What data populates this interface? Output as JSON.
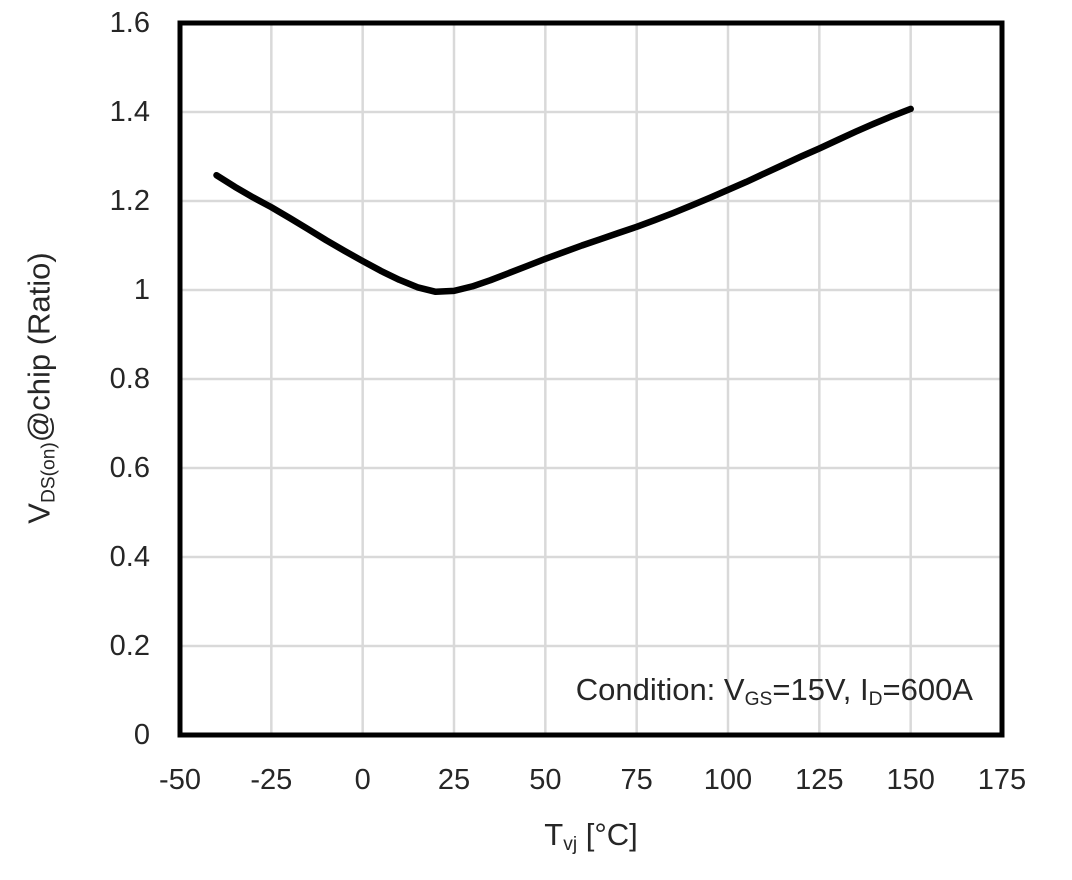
{
  "chart_data": {
    "type": "line",
    "title": "",
    "xlabel_text": "Tvj [°C]",
    "ylabel_text": "VDS(on)@chip (Ratio)",
    "xlabel_parts": [
      {
        "t": "T"
      },
      {
        "t": "vj",
        "sub": true
      },
      {
        "t": " [°C]"
      }
    ],
    "ylabel_parts": [
      {
        "t": "V"
      },
      {
        "t": "DS(on)",
        "sub": true
      },
      {
        "t": "@chip (Ratio)"
      }
    ],
    "annotation": {
      "text": "Condition: VGS=15V, ID=600A",
      "parts": [
        {
          "t": "Condition: V"
        },
        {
          "t": "GS",
          "sub": true
        },
        {
          "t": "=15V, I"
        },
        {
          "t": "D",
          "sub": true
        },
        {
          "t": "=600A"
        }
      ],
      "position": "bottom-right-inside"
    },
    "xlim": [
      -50,
      175
    ],
    "ylim": [
      0,
      1.6
    ],
    "x_ticks": {
      "values": [
        -50,
        -25,
        0,
        25,
        50,
        75,
        100,
        125,
        150,
        175
      ],
      "labels": [
        "-50",
        "-25",
        "0",
        "25",
        "50",
        "75",
        "100",
        "125",
        "150",
        "175"
      ]
    },
    "y_ticks": {
      "values": [
        0,
        0.2,
        0.4,
        0.6,
        0.8,
        1.0,
        1.2,
        1.4,
        1.6
      ],
      "labels": [
        "0",
        "0.2",
        "0.4",
        "0.6",
        "0.8",
        "1",
        "1.2",
        "1.4",
        "1.6"
      ]
    },
    "grid": true,
    "legend": "none",
    "series": [
      {
        "name": "VDS(on)@chip ratio",
        "color": "#000000",
        "x": [
          -40,
          -35,
          -30,
          -25,
          -20,
          -15,
          -10,
          -5,
          0,
          5,
          10,
          15,
          20,
          25,
          30,
          35,
          40,
          45,
          50,
          55,
          60,
          65,
          70,
          75,
          80,
          85,
          90,
          95,
          100,
          105,
          110,
          115,
          120,
          125,
          130,
          135,
          140,
          145,
          150
        ],
        "y": [
          1.258,
          1.232,
          1.208,
          1.186,
          1.162,
          1.137,
          1.112,
          1.088,
          1.065,
          1.043,
          1.023,
          1.006,
          0.996,
          0.998,
          1.008,
          1.022,
          1.038,
          1.054,
          1.07,
          1.085,
          1.1,
          1.114,
          1.128,
          1.142,
          1.157,
          1.173,
          1.19,
          1.207,
          1.225,
          1.243,
          1.262,
          1.281,
          1.3,
          1.318,
          1.337,
          1.356,
          1.374,
          1.391,
          1.407
        ]
      }
    ],
    "colors": {
      "background": "#ffffff",
      "grid": "#d9d9d9",
      "axis_border": "#000000",
      "curve": "#000000",
      "text": "#262626"
    }
  }
}
